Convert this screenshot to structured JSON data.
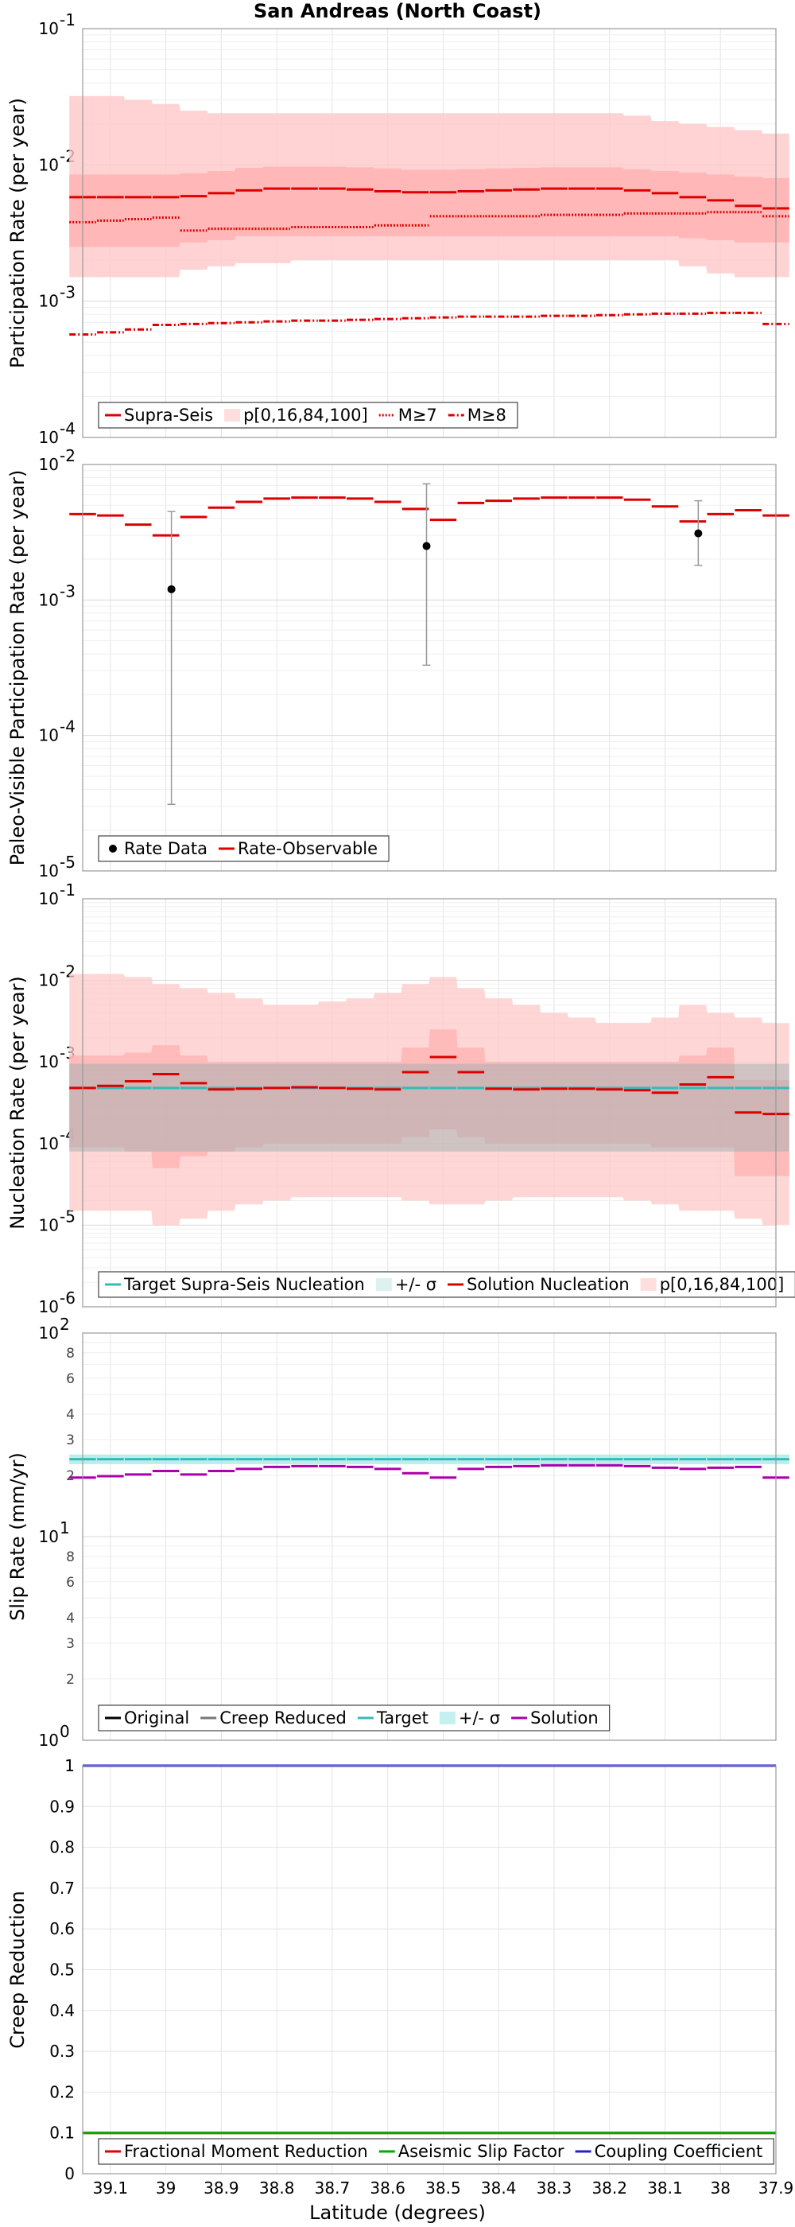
{
  "title": "San Andreas (North Coast)",
  "xlabel": "Latitude (degrees)",
  "x_ticks": [
    "39.1",
    "39",
    "38.9",
    "38.8",
    "38.7",
    "38.6",
    "38.5",
    "38.4",
    "38.3",
    "38.2",
    "38.1",
    "38",
    "37.9"
  ],
  "colors": {
    "red": "#dd0000",
    "pink": "#ffc8c8",
    "pinkmid": "#ffb0b0",
    "teal": "#33bbbb",
    "gray": "#777777",
    "purple": "#aa00aa",
    "green": "#00aa00",
    "blue": "#2222cc",
    "black": "#000000"
  },
  "chart_data": [
    {
      "type": "line",
      "ylabel": "Participation Rate (per year)",
      "yscale": "log",
      "ylim": [
        0.0001,
        0.1
      ],
      "y_ticks": [
        {
          "exp": "-4"
        },
        {
          "exp": "-3"
        },
        {
          "exp": "-2"
        },
        {
          "exp": "-1"
        }
      ],
      "legend": [
        "Supra-Seis",
        "p[0,16,84,100]",
        "M≥7",
        "M≥8"
      ],
      "x_lat": [
        39.15,
        39.1,
        39.05,
        39.0,
        38.95,
        38.9,
        38.85,
        38.8,
        38.75,
        38.7,
        38.65,
        38.6,
        38.55,
        38.5,
        38.45,
        38.4,
        38.35,
        38.3,
        38.25,
        38.2,
        38.15,
        38.1,
        38.05,
        38.0,
        37.95,
        37.9
      ],
      "series": [
        {
          "name": "Supra-Seis",
          "style": "solid",
          "values": [
            0.0058,
            0.0058,
            0.0058,
            0.0058,
            0.0059,
            0.0062,
            0.0065,
            0.0067,
            0.0067,
            0.0067,
            0.0066,
            0.0064,
            0.0063,
            0.0063,
            0.0064,
            0.0065,
            0.0066,
            0.0067,
            0.0067,
            0.0067,
            0.0065,
            0.0062,
            0.0058,
            0.0055,
            0.005,
            0.0048
          ]
        },
        {
          "name": "M≥7",
          "style": "dotted",
          "values": [
            0.0038,
            0.0039,
            0.004,
            0.0041,
            0.0033,
            0.0034,
            0.0034,
            0.0034,
            0.0035,
            0.0035,
            0.0035,
            0.0036,
            0.0036,
            0.0042,
            0.0042,
            0.0042,
            0.0042,
            0.0043,
            0.0043,
            0.0043,
            0.0044,
            0.0044,
            0.0044,
            0.0045,
            0.0045,
            0.0042
          ]
        },
        {
          "name": "M≥8",
          "style": "dashdot",
          "values": [
            0.00057,
            0.00059,
            0.00062,
            0.00067,
            0.00068,
            0.00069,
            0.0007,
            0.00071,
            0.00072,
            0.00072,
            0.00073,
            0.00074,
            0.00075,
            0.00076,
            0.00077,
            0.00077,
            0.00077,
            0.00078,
            0.00078,
            0.00079,
            0.0008,
            0.00081,
            0.00081,
            0.00082,
            0.00082,
            0.00068
          ]
        }
      ],
      "band_outer": {
        "lo": [
          0.0015,
          0.0015,
          0.0015,
          0.0015,
          0.0017,
          0.0018,
          0.0019,
          0.0019,
          0.002,
          0.002,
          0.002,
          0.002,
          0.002,
          0.002,
          0.002,
          0.002,
          0.002,
          0.002,
          0.002,
          0.002,
          0.002,
          0.002,
          0.0018,
          0.0016,
          0.0015,
          0.0015
        ],
        "hi": [
          0.032,
          0.032,
          0.03,
          0.028,
          0.025,
          0.024,
          0.024,
          0.024,
          0.024,
          0.024,
          0.024,
          0.024,
          0.024,
          0.024,
          0.024,
          0.024,
          0.024,
          0.024,
          0.024,
          0.024,
          0.023,
          0.021,
          0.02,
          0.019,
          0.018,
          0.017
        ]
      },
      "band_inner": {
        "lo": [
          0.0025,
          0.0025,
          0.0025,
          0.0025,
          0.0027,
          0.0028,
          0.003,
          0.003,
          0.003,
          0.003,
          0.003,
          0.003,
          0.003,
          0.003,
          0.003,
          0.003,
          0.003,
          0.003,
          0.003,
          0.003,
          0.003,
          0.003,
          0.0029,
          0.0028,
          0.0027,
          0.0027
        ],
        "hi": [
          0.0085,
          0.0085,
          0.0085,
          0.0085,
          0.0087,
          0.009,
          0.0095,
          0.0097,
          0.0097,
          0.0097,
          0.0096,
          0.0094,
          0.0092,
          0.0092,
          0.0093,
          0.0094,
          0.0095,
          0.0096,
          0.0096,
          0.0096,
          0.0093,
          0.009,
          0.0088,
          0.0085,
          0.0082,
          0.008
        ]
      }
    },
    {
      "type": "line",
      "ylabel": "Paleo-Visible Participation Rate (per year)",
      "yscale": "log",
      "ylim": [
        1e-05,
        0.01
      ],
      "y_ticks": [
        {
          "exp": "-5"
        },
        {
          "exp": "-4"
        },
        {
          "exp": "-3"
        },
        {
          "exp": "-2"
        }
      ],
      "legend": [
        "Rate Data",
        "Rate-Observable"
      ],
      "x_lat": [
        39.15,
        39.1,
        39.05,
        39.0,
        38.95,
        38.9,
        38.85,
        38.8,
        38.75,
        38.7,
        38.65,
        38.6,
        38.55,
        38.5,
        38.45,
        38.4,
        38.35,
        38.3,
        38.25,
        38.2,
        38.15,
        38.1,
        38.05,
        38.0,
        37.95,
        37.9
      ],
      "series": [
        {
          "name": "Rate-Observable",
          "style": "solid",
          "values": [
            0.0043,
            0.0042,
            0.0036,
            0.003,
            0.0041,
            0.0048,
            0.0053,
            0.0056,
            0.0057,
            0.0057,
            0.0056,
            0.0053,
            0.0047,
            0.0039,
            0.0052,
            0.0054,
            0.0056,
            0.0057,
            0.0057,
            0.0057,
            0.0055,
            0.0049,
            0.0038,
            0.0043,
            0.0046,
            0.0042
          ]
        }
      ],
      "points": [
        {
          "name": "Rate Data",
          "x": 38.99,
          "y": 0.0012,
          "lo": 3.1e-05,
          "hi": 0.0045
        },
        {
          "name": "Rate Data",
          "x": 38.53,
          "y": 0.0025,
          "lo": 0.00033,
          "hi": 0.0072
        },
        {
          "name": "Rate Data",
          "x": 38.04,
          "y": 0.0031,
          "lo": 0.0018,
          "hi": 0.0054
        }
      ]
    },
    {
      "type": "line",
      "ylabel": "Nucleation Rate (per year)",
      "yscale": "log",
      "ylim": [
        1e-06,
        0.1
      ],
      "y_ticks": [
        {
          "exp": "-6"
        },
        {
          "exp": "-5"
        },
        {
          "exp": "-4"
        },
        {
          "exp": "-3"
        },
        {
          "exp": "-2"
        },
        {
          "exp": "-1"
        }
      ],
      "legend": [
        "Target Supra-Seis Nucleation",
        "+/- σ",
        "Solution Nucleation",
        "p[0,16,84,100]"
      ],
      "x_lat": [
        39.15,
        39.1,
        39.05,
        39.0,
        38.95,
        38.9,
        38.85,
        38.8,
        38.75,
        38.7,
        38.65,
        38.6,
        38.55,
        38.5,
        38.45,
        38.4,
        38.35,
        38.3,
        38.25,
        38.2,
        38.15,
        38.1,
        38.05,
        38.0,
        37.95,
        37.9
      ],
      "series": [
        {
          "name": "Target Supra-Seis Nucleation",
          "style": "solid",
          "values": [
            0.00048,
            0.00048,
            0.00048,
            0.00048,
            0.00048,
            0.00048,
            0.00048,
            0.00048,
            0.00048,
            0.00048,
            0.00048,
            0.00048,
            0.00048,
            0.00048,
            0.00048,
            0.00048,
            0.00048,
            0.00048,
            0.00048,
            0.00048,
            0.00048,
            0.00048,
            0.00048,
            0.00048,
            0.00048,
            0.00048
          ]
        },
        {
          "name": "Solution Nucleation",
          "style": "solid",
          "values": [
            0.00048,
            0.00051,
            0.00058,
            0.00071,
            0.00055,
            0.00046,
            0.00047,
            0.00048,
            0.00049,
            0.00048,
            0.00047,
            0.00046,
            0.00075,
            0.00115,
            0.00075,
            0.00047,
            0.00046,
            0.00047,
            0.00047,
            0.00046,
            0.00045,
            0.00042,
            0.00053,
            0.00065,
            0.00024,
            0.00023
          ]
        }
      ],
      "band_sigma": {
        "lo": [
          8e-05,
          8e-05,
          8e-05,
          8e-05,
          8e-05,
          8e-05,
          8e-05,
          8e-05,
          8e-05,
          8e-05,
          8e-05,
          8e-05,
          8e-05,
          8e-05,
          8e-05,
          8e-05,
          8e-05,
          8e-05,
          8e-05,
          8e-05,
          8e-05,
          8e-05,
          8e-05,
          8e-05,
          8e-05,
          8e-05
        ],
        "hi": [
          0.00095,
          0.00095,
          0.00095,
          0.00095,
          0.00095,
          0.00095,
          0.00095,
          0.00095,
          0.00095,
          0.00095,
          0.00095,
          0.00095,
          0.00095,
          0.00095,
          0.00095,
          0.00095,
          0.00095,
          0.00095,
          0.00095,
          0.00095,
          0.00095,
          0.00095,
          0.00095,
          0.00095,
          0.00095,
          0.00095
        ]
      },
      "band_outer": {
        "lo": [
          1.5e-05,
          1.5e-05,
          1.5e-05,
          1e-05,
          1.2e-05,
          1.5e-05,
          1.8e-05,
          2e-05,
          2.2e-05,
          2.2e-05,
          2.2e-05,
          2.2e-05,
          2e-05,
          1.8e-05,
          1.8e-05,
          2e-05,
          2.2e-05,
          2.2e-05,
          2.2e-05,
          2.2e-05,
          2e-05,
          1.8e-05,
          1.5e-05,
          1.5e-05,
          1.2e-05,
          1e-05
        ],
        "hi": [
          0.012,
          0.012,
          0.011,
          0.009,
          0.008,
          0.007,
          0.006,
          0.005,
          0.005,
          0.0055,
          0.006,
          0.007,
          0.009,
          0.011,
          0.008,
          0.006,
          0.005,
          0.004,
          0.0035,
          0.003,
          0.003,
          0.0035,
          0.005,
          0.004,
          0.0035,
          0.003
        ]
      },
      "band_inner": {
        "lo": [
          9e-05,
          9e-05,
          8e-05,
          5e-05,
          7e-05,
          8e-05,
          9e-05,
          0.0001,
          0.0001,
          0.0001,
          0.0001,
          0.0001,
          0.00012,
          0.00015,
          0.00012,
          0.0001,
          0.0001,
          0.0001,
          0.0001,
          0.0001,
          0.0001,
          9e-05,
          9e-05,
          9e-05,
          4e-05,
          4e-05
        ],
        "hi": [
          0.0012,
          0.0012,
          0.0013,
          0.0016,
          0.0012,
          0.001,
          0.001,
          0.001,
          0.001,
          0.001,
          0.001,
          0.001,
          0.0015,
          0.0025,
          0.0015,
          0.001,
          0.001,
          0.001,
          0.001,
          0.001,
          0.001,
          0.001,
          0.0012,
          0.0015,
          0.0006,
          0.0006
        ]
      }
    },
    {
      "type": "line",
      "ylabel": "Slip Rate (mm/yr)",
      "yscale": "log",
      "ylim": [
        1,
        100
      ],
      "y_ticks": [
        {
          "exp": "0"
        },
        {
          "exp": "1"
        },
        {
          "exp": "2"
        }
      ],
      "y_minor_labels": [
        "2",
        "3",
        "4",
        "6",
        "8"
      ],
      "legend": [
        "Original",
        "Creep Reduced",
        "Target",
        "+/- σ",
        "Solution"
      ],
      "x_lat": [
        39.15,
        39.1,
        39.05,
        39.0,
        38.95,
        38.9,
        38.85,
        38.8,
        38.75,
        38.7,
        38.65,
        38.6,
        38.55,
        38.5,
        38.45,
        38.4,
        38.35,
        38.3,
        38.25,
        38.2,
        38.15,
        38.1,
        38.05,
        38.0,
        37.95,
        37.9
      ],
      "series": [
        {
          "name": "Target",
          "style": "solid",
          "values": [
            24,
            24,
            24,
            24,
            24,
            24,
            24,
            24,
            24,
            24,
            24,
            24,
            24,
            24,
            24,
            24,
            24,
            24,
            24,
            24,
            24,
            24,
            24,
            24,
            24,
            24
          ]
        },
        {
          "name": "Solution",
          "style": "solid",
          "values": [
            19.5,
            19.8,
            20.2,
            21,
            20.2,
            21,
            21.5,
            22,
            22.2,
            22.2,
            22,
            21.5,
            20.5,
            19.5,
            21.5,
            22,
            22.2,
            22.4,
            22.4,
            22.4,
            22.2,
            21.8,
            21.5,
            21.8,
            22,
            19.5
          ]
        }
      ],
      "band_sigma": {
        "lo": [
          22.7,
          22.7,
          22.7,
          22.7,
          22.7,
          22.7,
          22.7,
          22.7,
          22.7,
          22.7,
          22.7,
          22.7,
          22.7,
          22.7,
          22.7,
          22.7,
          22.7,
          22.7,
          22.7,
          22.7,
          22.7,
          22.7,
          22.7,
          22.7,
          22.7,
          22.7
        ],
        "hi": [
          25.3,
          25.3,
          25.3,
          25.3,
          25.3,
          25.3,
          25.3,
          25.3,
          25.3,
          25.3,
          25.3,
          25.3,
          25.3,
          25.3,
          25.3,
          25.3,
          25.3,
          25.3,
          25.3,
          25.3,
          25.3,
          25.3,
          25.3,
          25.3,
          25.3,
          25.3
        ]
      }
    },
    {
      "type": "line",
      "ylabel": "Creep Reduction",
      "yscale": "linear",
      "ylim": [
        0,
        1
      ],
      "y_ticks": [
        "0",
        "0.1",
        "0.2",
        "0.3",
        "0.4",
        "0.5",
        "0.6",
        "0.7",
        "0.8",
        "0.9",
        "1"
      ],
      "legend": [
        "Fractional Moment Reduction",
        "Aseismic Slip Factor",
        "Coupling Coefficient"
      ],
      "x_lat": [
        39.15,
        37.9
      ],
      "series": [
        {
          "name": "Fractional Moment Reduction",
          "style": "solid",
          "values": [
            0.1,
            0.1
          ]
        },
        {
          "name": "Aseismic Slip Factor",
          "style": "solid",
          "values": [
            0.1,
            0.1
          ]
        },
        {
          "name": "Coupling Coefficient",
          "style": "solid",
          "values": [
            1,
            1
          ]
        }
      ]
    }
  ]
}
